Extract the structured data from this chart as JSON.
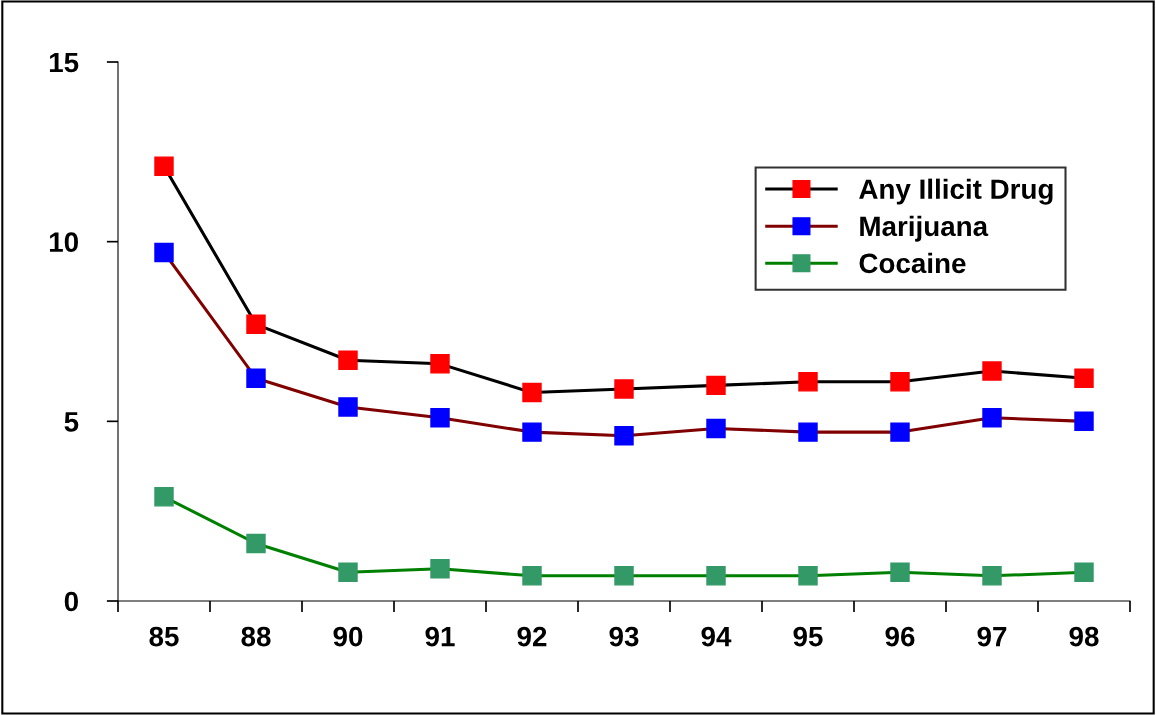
{
  "chart_data": {
    "type": "line",
    "categories": [
      "85",
      "88",
      "90",
      "91",
      "92",
      "93",
      "94",
      "95",
      "96",
      "97",
      "98"
    ],
    "ylim": [
      0,
      15
    ],
    "yticks": [
      0,
      5,
      10,
      15
    ],
    "grid": false,
    "legend": "top right",
    "marker": "square",
    "line_style": "solid",
    "series": [
      {
        "name": "Any Illicit Drug",
        "color": "#000000",
        "colors": [
          "#ff0000",
          "#ff0000",
          "#ff0000",
          "#ff0000",
          "#ff0000",
          "#ff0000",
          "#ff0000",
          "#ff0000",
          "#ff0000",
          "#ff0000",
          "#ff0000"
        ],
        "values": [
          12.1,
          7.7,
          6.7,
          6.6,
          5.8,
          5.9,
          6.0,
          6.1,
          6.1,
          6.4,
          6.2
        ]
      },
      {
        "name": "Marijuana",
        "color": "#800000",
        "colors": [
          "#0000ff",
          "#0000ff",
          "#0000ff",
          "#0000ff",
          "#0000ff",
          "#0000ff",
          "#0000ff",
          "#0000ff",
          "#0000ff",
          "#0000ff",
          "#0000ff"
        ],
        "values": [
          9.7,
          6.2,
          5.4,
          5.1,
          4.7,
          4.6,
          4.8,
          4.7,
          4.7,
          5.1,
          5.0
        ]
      },
      {
        "name": "Cocaine",
        "color": "#008000",
        "colors": [
          "#339966",
          "#339966",
          "#339966",
          "#339966",
          "#339966",
          "#339966",
          "#339966",
          "#339966",
          "#339966",
          "#339966",
          "#339966"
        ],
        "values": [
          2.9,
          1.6,
          0.8,
          0.9,
          0.7,
          0.7,
          0.7,
          0.7,
          0.8,
          0.7,
          0.8
        ]
      }
    ]
  }
}
